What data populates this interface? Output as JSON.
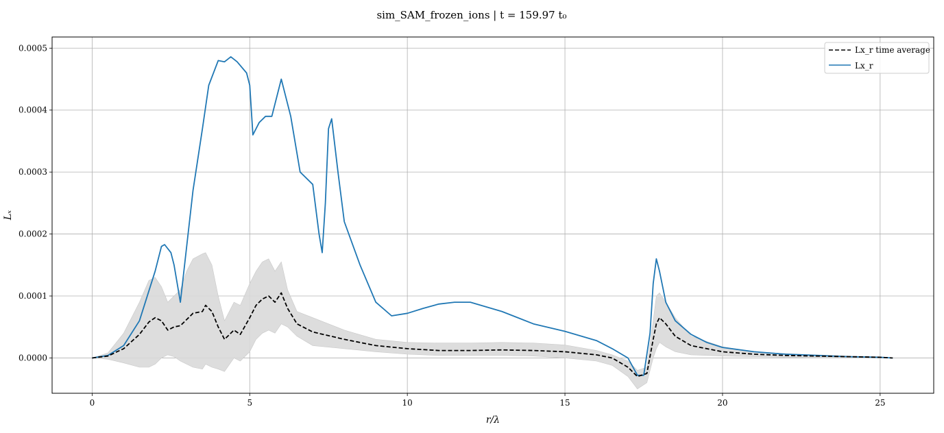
{
  "chart_data": {
    "type": "line",
    "title": "sim_SAM_frozen_ions | t = 159.97 t₀",
    "xlabel": "r/λ",
    "ylabel": "Lₓ",
    "xlim": [
      -1.27,
      26.7
    ],
    "ylim": [
      -5.7e-05,
      0.000518
    ],
    "xticks": [
      0,
      5,
      10,
      15,
      20,
      25
    ],
    "xtick_labels": [
      "0",
      "5",
      "10",
      "15",
      "20",
      "25"
    ],
    "yticks": [
      0.0,
      0.0001,
      0.0002,
      0.0003,
      0.0004,
      0.0005
    ],
    "ytick_labels": [
      "0.0000",
      "0.0001",
      "0.0002",
      "0.0003",
      "0.0004",
      "0.0005"
    ],
    "grid": true,
    "legend_position": "top-right",
    "colors": {
      "lx_r": "#1f77b4",
      "time_average": "#000000",
      "band": "#d9d9d9"
    },
    "series": [
      {
        "name": "Lx_r time average",
        "style": "dashed",
        "x": [
          0,
          0.5,
          1.0,
          1.5,
          1.8,
          2.0,
          2.2,
          2.4,
          2.6,
          2.8,
          3.0,
          3.2,
          3.5,
          3.6,
          3.8,
          4.0,
          4.2,
          4.5,
          4.7,
          5.0,
          5.2,
          5.4,
          5.6,
          5.8,
          6.0,
          6.2,
          6.5,
          7.0,
          8.0,
          9.0,
          10.0,
          11.0,
          12.0,
          13.0,
          14.0,
          15.0,
          16.0,
          16.5,
          17.0,
          17.3,
          17.6,
          17.8,
          17.9,
          18.0,
          18.2,
          18.5,
          19.0,
          20.0,
          21.0,
          22.0,
          23.0,
          24.0,
          25.0,
          25.4
        ],
        "y": [
          0.0,
          3e-06,
          1.5e-05,
          3.8e-05,
          5.8e-05,
          6.5e-05,
          6e-05,
          4.5e-05,
          5e-05,
          5.2e-05,
          6.2e-05,
          7.2e-05,
          7.5e-05,
          8.5e-05,
          7.5e-05,
          5e-05,
          3e-05,
          4.5e-05,
          3.8e-05,
          6.5e-05,
          8.5e-05,
          9.5e-05,
          0.0001,
          9e-05,
          0.000105,
          8e-05,
          5.5e-05,
          4.2e-05,
          3e-05,
          2e-05,
          1.5e-05,
          1.2e-05,
          1.2e-05,
          1.3e-05,
          1.2e-05,
          1e-05,
          5e-06,
          0.0,
          -1.5e-05,
          -3e-05,
          -2.5e-05,
          3e-05,
          5.5e-05,
          6.5e-05,
          5.5e-05,
          3.5e-05,
          2e-05,
          1e-05,
          6e-06,
          4e-06,
          3e-06,
          2e-06,
          1e-06,
          0.0
        ]
      },
      {
        "name": "Lx_r",
        "style": "solid",
        "x": [
          0,
          0.5,
          1.0,
          1.5,
          2.0,
          2.2,
          2.3,
          2.5,
          2.6,
          2.7,
          2.8,
          3.0,
          3.2,
          3.5,
          3.7,
          4.0,
          4.2,
          4.4,
          4.6,
          4.9,
          5.0,
          5.1,
          5.3,
          5.5,
          5.7,
          5.9,
          6.0,
          6.3,
          6.6,
          7.0,
          7.2,
          7.3,
          7.4,
          7.5,
          7.6,
          7.8,
          8.0,
          8.5,
          9.0,
          9.5,
          10.0,
          10.5,
          11.0,
          11.5,
          12.0,
          13.0,
          14.0,
          15.0,
          16.0,
          16.5,
          17.0,
          17.3,
          17.5,
          17.7,
          17.8,
          17.9,
          18.0,
          18.2,
          18.5,
          19.0,
          19.5,
          20.0,
          21.0,
          22.0,
          23.0,
          24.0,
          25.0,
          25.4
        ],
        "y": [
          0.0,
          4e-06,
          2e-05,
          6e-05,
          0.00014,
          0.00018,
          0.000183,
          0.00017,
          0.00015,
          0.00012,
          9e-05,
          0.00018,
          0.00027,
          0.00037,
          0.00044,
          0.00048,
          0.000478,
          0.000486,
          0.000478,
          0.00046,
          0.00044,
          0.00036,
          0.00038,
          0.00039,
          0.00039,
          0.00043,
          0.00045,
          0.00039,
          0.0003,
          0.00028,
          0.0002,
          0.00017,
          0.00025,
          0.00037,
          0.000386,
          0.0003,
          0.00022,
          0.00015,
          9e-05,
          6.8e-05,
          7.2e-05,
          8e-05,
          8.7e-05,
          9e-05,
          9e-05,
          7.5e-05,
          5.5e-05,
          4.3e-05,
          2.8e-05,
          1.5e-05,
          0.0,
          -2.8e-05,
          -2.8e-05,
          4e-05,
          0.00012,
          0.00016,
          0.00014,
          9e-05,
          6e-05,
          3.8e-05,
          2.5e-05,
          1.7e-05,
          1e-05,
          6e-06,
          4e-06,
          2e-06,
          1e-06,
          0.0
        ]
      }
    ],
    "band": {
      "x": [
        0,
        0.5,
        1.0,
        1.5,
        1.8,
        2.0,
        2.2,
        2.4,
        2.6,
        2.8,
        3.0,
        3.2,
        3.5,
        3.6,
        3.8,
        4.0,
        4.2,
        4.5,
        4.7,
        5.0,
        5.2,
        5.4,
        5.6,
        5.8,
        6.0,
        6.2,
        6.5,
        7.0,
        8.0,
        9.0,
        10.0,
        11.0,
        12.0,
        13.0,
        14.0,
        15.0,
        16.0,
        16.5,
        17.0,
        17.3,
        17.6,
        17.8,
        17.9,
        18.0,
        18.2,
        18.5,
        19.0,
        20.0,
        21.0,
        22.0,
        23.0,
        24.0,
        25.0,
        25.4
      ],
      "upper": [
        0.0,
        8e-06,
        4e-05,
        9e-05,
        0.000125,
        0.00013,
        0.000115,
        9e-05,
        0.0001,
        0.00011,
        0.00014,
        0.00016,
        0.000168,
        0.00017,
        0.00015,
        0.0001,
        6e-05,
        9e-05,
        8.5e-05,
        0.00012,
        0.00014,
        0.000155,
        0.00016,
        0.00014,
        0.000155,
        0.00011,
        7.5e-05,
        6.5e-05,
        4.5e-05,
        3e-05,
        2.5e-05,
        2.4e-05,
        2.4e-05,
        2.5e-05,
        2.4e-05,
        2.1e-05,
        1.2e-05,
        5e-06,
        -5e-06,
        -2e-05,
        -1.5e-05,
        6e-05,
        0.0001,
        0.000105,
        9e-05,
        6.5e-05,
        3.5e-05,
        1.8e-05,
        1e-05,
        7e-06,
        5e-06,
        3e-06,
        2e-06,
        0.0
      ],
      "lower": [
        0.0,
        -2e-06,
        -8e-06,
        -1.5e-05,
        -1.5e-05,
        -1e-05,
        0.0,
        5e-06,
        2e-06,
        -5e-06,
        -1e-05,
        -1.5e-05,
        -1.8e-05,
        -1e-05,
        -1.5e-05,
        -1.8e-05,
        -2.2e-05,
        0.0,
        -5e-06,
        1e-05,
        3e-05,
        4e-05,
        4.5e-05,
        4e-05,
        5.5e-05,
        5e-05,
        3.5e-05,
        2e-05,
        1.5e-05,
        1e-05,
        6e-06,
        4e-06,
        4e-06,
        4e-06,
        3e-06,
        0.0,
        -5e-06,
        -1.2e-05,
        -3e-05,
        -5e-05,
        -4e-05,
        0.0,
        1.5e-05,
        2.5e-05,
        1.8e-05,
        1e-05,
        5e-06,
        3e-06,
        2e-06,
        1e-06,
        0.0,
        0.0,
        0.0,
        0.0
      ]
    }
  }
}
